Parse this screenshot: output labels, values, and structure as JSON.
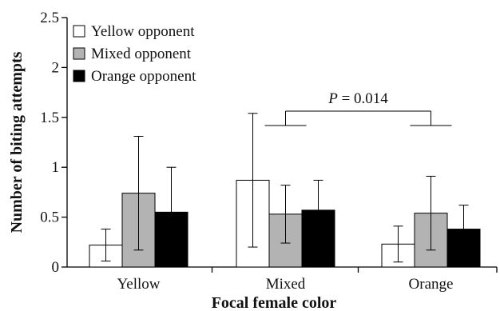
{
  "chart_data": {
    "type": "bar",
    "xlabel": "Focal female color",
    "ylabel": "Number of biting attempts",
    "ylim": [
      0,
      2.5
    ],
    "yticks": [
      "0",
      "0.5",
      "1",
      "1.5",
      "2",
      "2.5"
    ],
    "categories": [
      "Yellow",
      "Mixed",
      "Orange"
    ],
    "series": [
      {
        "name": "Yellow opponent",
        "color": "#ffffff",
        "values": [
          0.22,
          0.87,
          0.23
        ],
        "error": [
          0.16,
          0.67,
          0.18
        ]
      },
      {
        "name": "Mixed opponent",
        "color": "#b3b3b3",
        "values": [
          0.74,
          0.53,
          0.54
        ],
        "error": [
          0.57,
          0.29,
          0.37
        ]
      },
      {
        "name": "Orange opponent",
        "color": "#000000",
        "values": [
          0.55,
          0.57,
          0.38
        ],
        "error": [
          0.45,
          0.3,
          0.24
        ]
      }
    ],
    "legend_position": "top-left",
    "annotation": {
      "p_symbol": "P",
      "text": " = 0.014",
      "between": [
        "Mixed",
        "Orange"
      ]
    }
  }
}
